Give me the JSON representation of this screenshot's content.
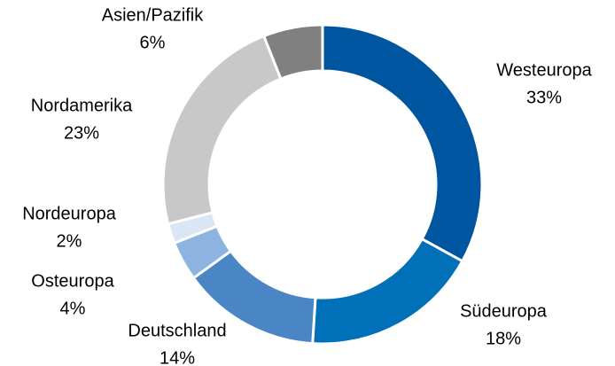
{
  "chart_data": {
    "type": "donut",
    "categories": [
      "Westeuropa",
      "Südeuropa",
      "Deutschland",
      "Osteuropa",
      "Nordeuropa",
      "Nordamerika",
      "Asien/Pazifik"
    ],
    "values": [
      33,
      18,
      14,
      4,
      2,
      23,
      6
    ],
    "value_labels": [
      "33%",
      "18%",
      "14%",
      "4%",
      "2%",
      "23%",
      "6%"
    ],
    "colors": [
      "#0055a0",
      "#0070b8",
      "#4a86c5",
      "#8db4e0",
      "#dbe6f5",
      "#c8c8c8",
      "#808080"
    ]
  }
}
